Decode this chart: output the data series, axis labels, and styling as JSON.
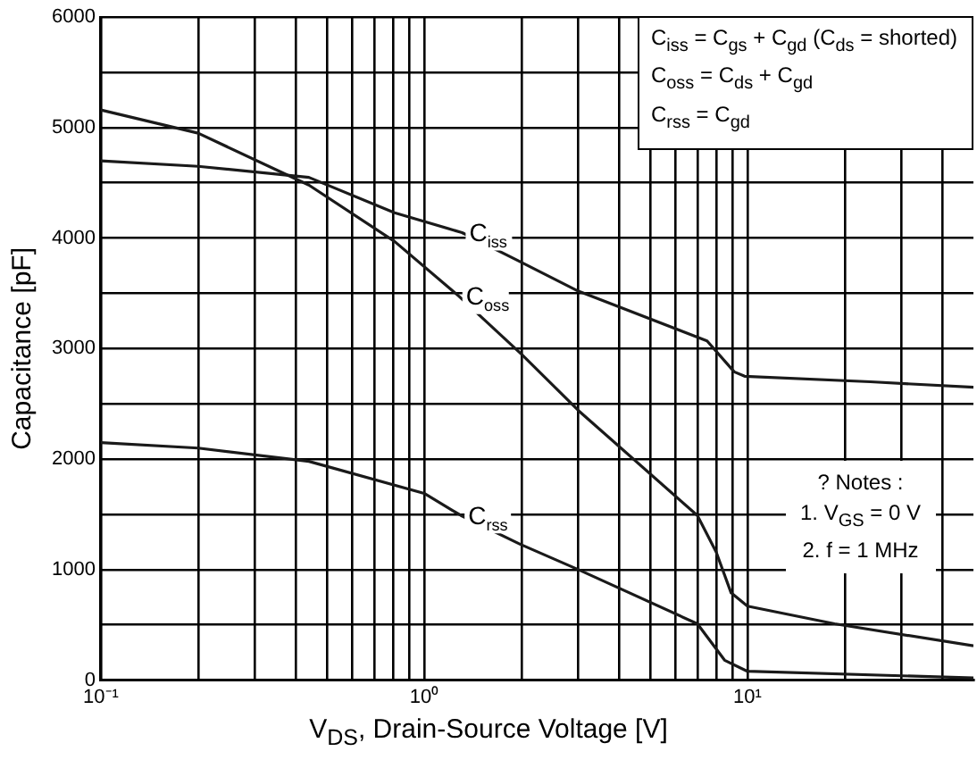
{
  "chart_data": {
    "type": "line",
    "xlabel": "V$_{DS}$, Drain-Source Voltage [V]",
    "ylabel": "Capacitance [pF]",
    "log": "x",
    "xlim": [
      0.1,
      50
    ],
    "ylim": [
      0,
      6000
    ],
    "xticks": [
      {
        "value": 0.1,
        "label": "10⁻¹"
      },
      {
        "value": 0.2,
        "label": null
      },
      {
        "value": 0.3,
        "label": null
      },
      {
        "value": 0.4,
        "label": null
      },
      {
        "value": 0.5,
        "label": null
      },
      {
        "value": 0.6,
        "label": null
      },
      {
        "value": 0.7,
        "label": null
      },
      {
        "value": 0.8,
        "label": null
      },
      {
        "value": 0.9,
        "label": null
      },
      {
        "value": 1,
        "label": "10⁰"
      },
      {
        "value": 2,
        "label": null
      },
      {
        "value": 3,
        "label": null
      },
      {
        "value": 4,
        "label": null
      },
      {
        "value": 5,
        "label": null
      },
      {
        "value": 6,
        "label": null
      },
      {
        "value": 7,
        "label": null
      },
      {
        "value": 8,
        "label": null
      },
      {
        "value": 9,
        "label": null
      },
      {
        "value": 10,
        "label": "10¹"
      },
      {
        "value": 20,
        "label": null
      },
      {
        "value": 30,
        "label": null
      },
      {
        "value": 40,
        "label": null
      }
    ],
    "yticks": [
      0,
      {
        "value": 500,
        "label": null
      },
      1000,
      {
        "value": 1500,
        "label": null
      },
      2000,
      {
        "value": 2500,
        "label": null
      },
      3000,
      {
        "value": 3500,
        "label": null
      },
      4000,
      {
        "value": 4500,
        "label": null
      },
      5000,
      {
        "value": 5500,
        "label": null
      },
      6000
    ],
    "grid": true,
    "legend": false,
    "marker": "none",
    "line_style": "solid",
    "series": [
      {
        "name": "C$_{iss}$",
        "color": "#1a1a1a",
        "x": [
          0.1,
          0.2,
          0.44,
          0.81,
          1.31,
          1.94,
          3.0,
          7.5,
          9.1,
          9.8,
          24,
          50
        ],
        "values": [
          4700,
          4650,
          4550,
          4230,
          4050,
          3800,
          3520,
          3070,
          2790,
          2750,
          2700,
          2650
        ]
      },
      {
        "name": "C$_{oss}$",
        "color": "#1a1a1a",
        "x": [
          0.1,
          0.2,
          0.44,
          0.81,
          1.28,
          2.0,
          3.0,
          7.0,
          8.0,
          8.9,
          10,
          18.6,
          50
        ],
        "values": [
          5160,
          4950,
          4480,
          3970,
          3475,
          2950,
          2440,
          1490,
          1160,
          790,
          670,
          510,
          310
        ]
      },
      {
        "name": "C$_{rss}$",
        "color": "#1a1a1a",
        "x": [
          0.1,
          0.2,
          0.44,
          1.0,
          1.3,
          1.98,
          3.0,
          7.0,
          8.5,
          10,
          50
        ],
        "values": [
          2150,
          2100,
          1980,
          1690,
          1490,
          1230,
          1000,
          510,
          180,
          80,
          20
        ]
      }
    ],
    "annotations": [
      "C$_{iss}$ = C$_{gs}$ + C$_{gd}$ (C$_{ds}$ = shorted)",
      "C$_{oss}$ = C$_{ds}$ + C$_{gd}$",
      "C$_{rss}$ = C$_{gd}$",
      "? Notes :",
      "1. V$_{GS}$ = 0 V",
      "2. f = 1 MHz"
    ]
  }
}
